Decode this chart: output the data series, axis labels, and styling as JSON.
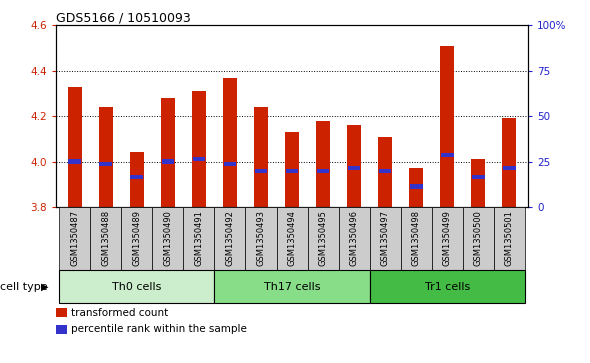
{
  "title": "GDS5166 / 10510093",
  "samples": [
    "GSM1350487",
    "GSM1350488",
    "GSM1350489",
    "GSM1350490",
    "GSM1350491",
    "GSM1350492",
    "GSM1350493",
    "GSM1350494",
    "GSM1350495",
    "GSM1350496",
    "GSM1350497",
    "GSM1350498",
    "GSM1350499",
    "GSM1350500",
    "GSM1350501"
  ],
  "bar_values": [
    4.33,
    4.24,
    4.04,
    4.28,
    4.31,
    4.37,
    4.24,
    4.13,
    4.18,
    4.16,
    4.11,
    3.97,
    4.51,
    4.01,
    4.19
  ],
  "percentile_values": [
    4.0,
    3.99,
    3.93,
    4.0,
    4.01,
    3.99,
    3.96,
    3.96,
    3.96,
    3.97,
    3.96,
    3.89,
    4.03,
    3.93,
    3.97
  ],
  "bar_color": "#cc2200",
  "percentile_color": "#3333cc",
  "ymin": 3.8,
  "ymax": 4.6,
  "yticks": [
    3.8,
    4.0,
    4.2,
    4.4,
    4.6
  ],
  "right_yticks": [
    0,
    25,
    50,
    75,
    100
  ],
  "grid_values": [
    4.0,
    4.2,
    4.4
  ],
  "cell_groups": [
    {
      "label": "Th0 cells",
      "start": 0,
      "end": 4,
      "color": "#cceecc"
    },
    {
      "label": "Th17 cells",
      "start": 5,
      "end": 9,
      "color": "#88dd88"
    },
    {
      "label": "Tr1 cells",
      "start": 10,
      "end": 14,
      "color": "#44bb44"
    }
  ],
  "cell_type_label": "cell type",
  "legend_items": [
    {
      "label": "transformed count",
      "color": "#cc2200",
      "marker": "s"
    },
    {
      "label": "percentile rank within the sample",
      "color": "#3333cc",
      "marker": "s"
    }
  ],
  "bar_width": 0.45,
  "bg_color": "#ffffff",
  "tick_label_color_left": "#cc2200",
  "tick_label_color_right": "#2222cc",
  "xtick_bg_color": "#cccccc"
}
